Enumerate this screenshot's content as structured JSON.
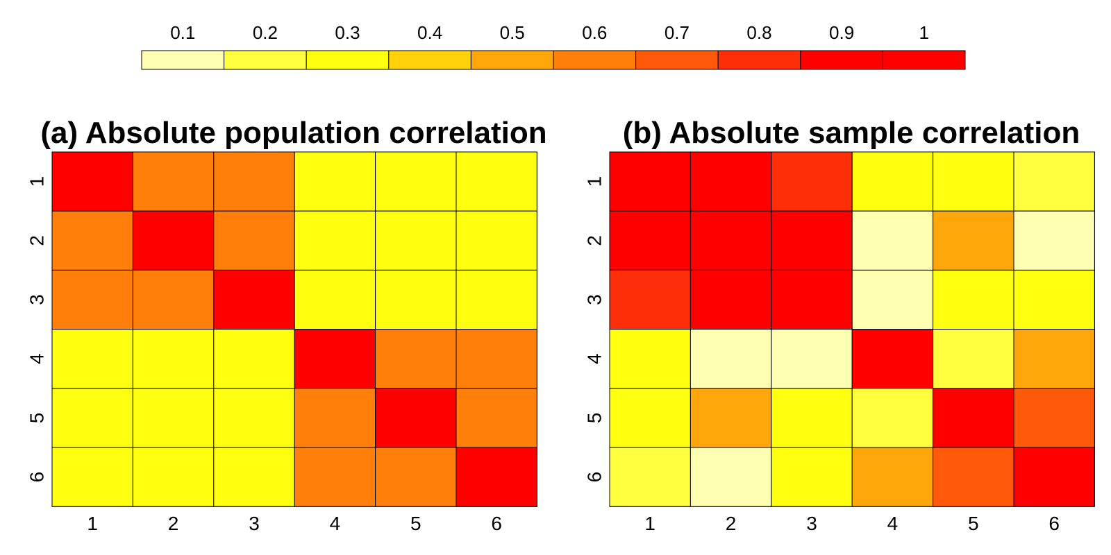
{
  "colorscale": {
    "labels": [
      "0.1",
      "0.2",
      "0.3",
      "0.4",
      "0.5",
      "0.6",
      "0.7",
      "0.8",
      "0.9",
      "1"
    ],
    "colors": [
      "#FFFFB2",
      "#FFFF40",
      "#FFFF10",
      "#FFD20A",
      "#FFA60A",
      "#FF7F0A",
      "#FF5A0A",
      "#FF2E0A",
      "#FF0000",
      "#FF0000"
    ]
  },
  "chart_data": [
    {
      "type": "heatmap",
      "title": "(a) Absolute population correlation",
      "xlabel": "",
      "ylabel": "",
      "x_ticks": [
        "1",
        "2",
        "3",
        "4",
        "5",
        "6"
      ],
      "y_ticks": [
        "1",
        "2",
        "3",
        "4",
        "5",
        "6"
      ],
      "grid": true,
      "values": [
        [
          1.0,
          0.6,
          0.6,
          0.3,
          0.3,
          0.3
        ],
        [
          0.6,
          1.0,
          0.6,
          0.3,
          0.3,
          0.3
        ],
        [
          0.6,
          0.6,
          1.0,
          0.3,
          0.3,
          0.3
        ],
        [
          0.3,
          0.3,
          0.3,
          1.0,
          0.6,
          0.6
        ],
        [
          0.3,
          0.3,
          0.3,
          0.6,
          1.0,
          0.6
        ],
        [
          0.3,
          0.3,
          0.3,
          0.6,
          0.6,
          1.0
        ]
      ]
    },
    {
      "type": "heatmap",
      "title": "(b) Absolute sample correlation",
      "xlabel": "",
      "ylabel": "",
      "x_ticks": [
        "1",
        "2",
        "3",
        "4",
        "5",
        "6"
      ],
      "y_ticks": [
        "1",
        "2",
        "3",
        "4",
        "5",
        "6"
      ],
      "grid": true,
      "values": [
        [
          1.0,
          1.0,
          0.8,
          0.3,
          0.3,
          0.2
        ],
        [
          1.0,
          1.0,
          1.0,
          0.1,
          0.5,
          0.1
        ],
        [
          0.8,
          1.0,
          1.0,
          0.1,
          0.3,
          0.3
        ],
        [
          0.3,
          0.1,
          0.1,
          1.0,
          0.2,
          0.5
        ],
        [
          0.3,
          0.5,
          0.3,
          0.2,
          1.0,
          0.7
        ],
        [
          0.2,
          0.1,
          0.3,
          0.5,
          0.7,
          1.0
        ]
      ]
    }
  ]
}
